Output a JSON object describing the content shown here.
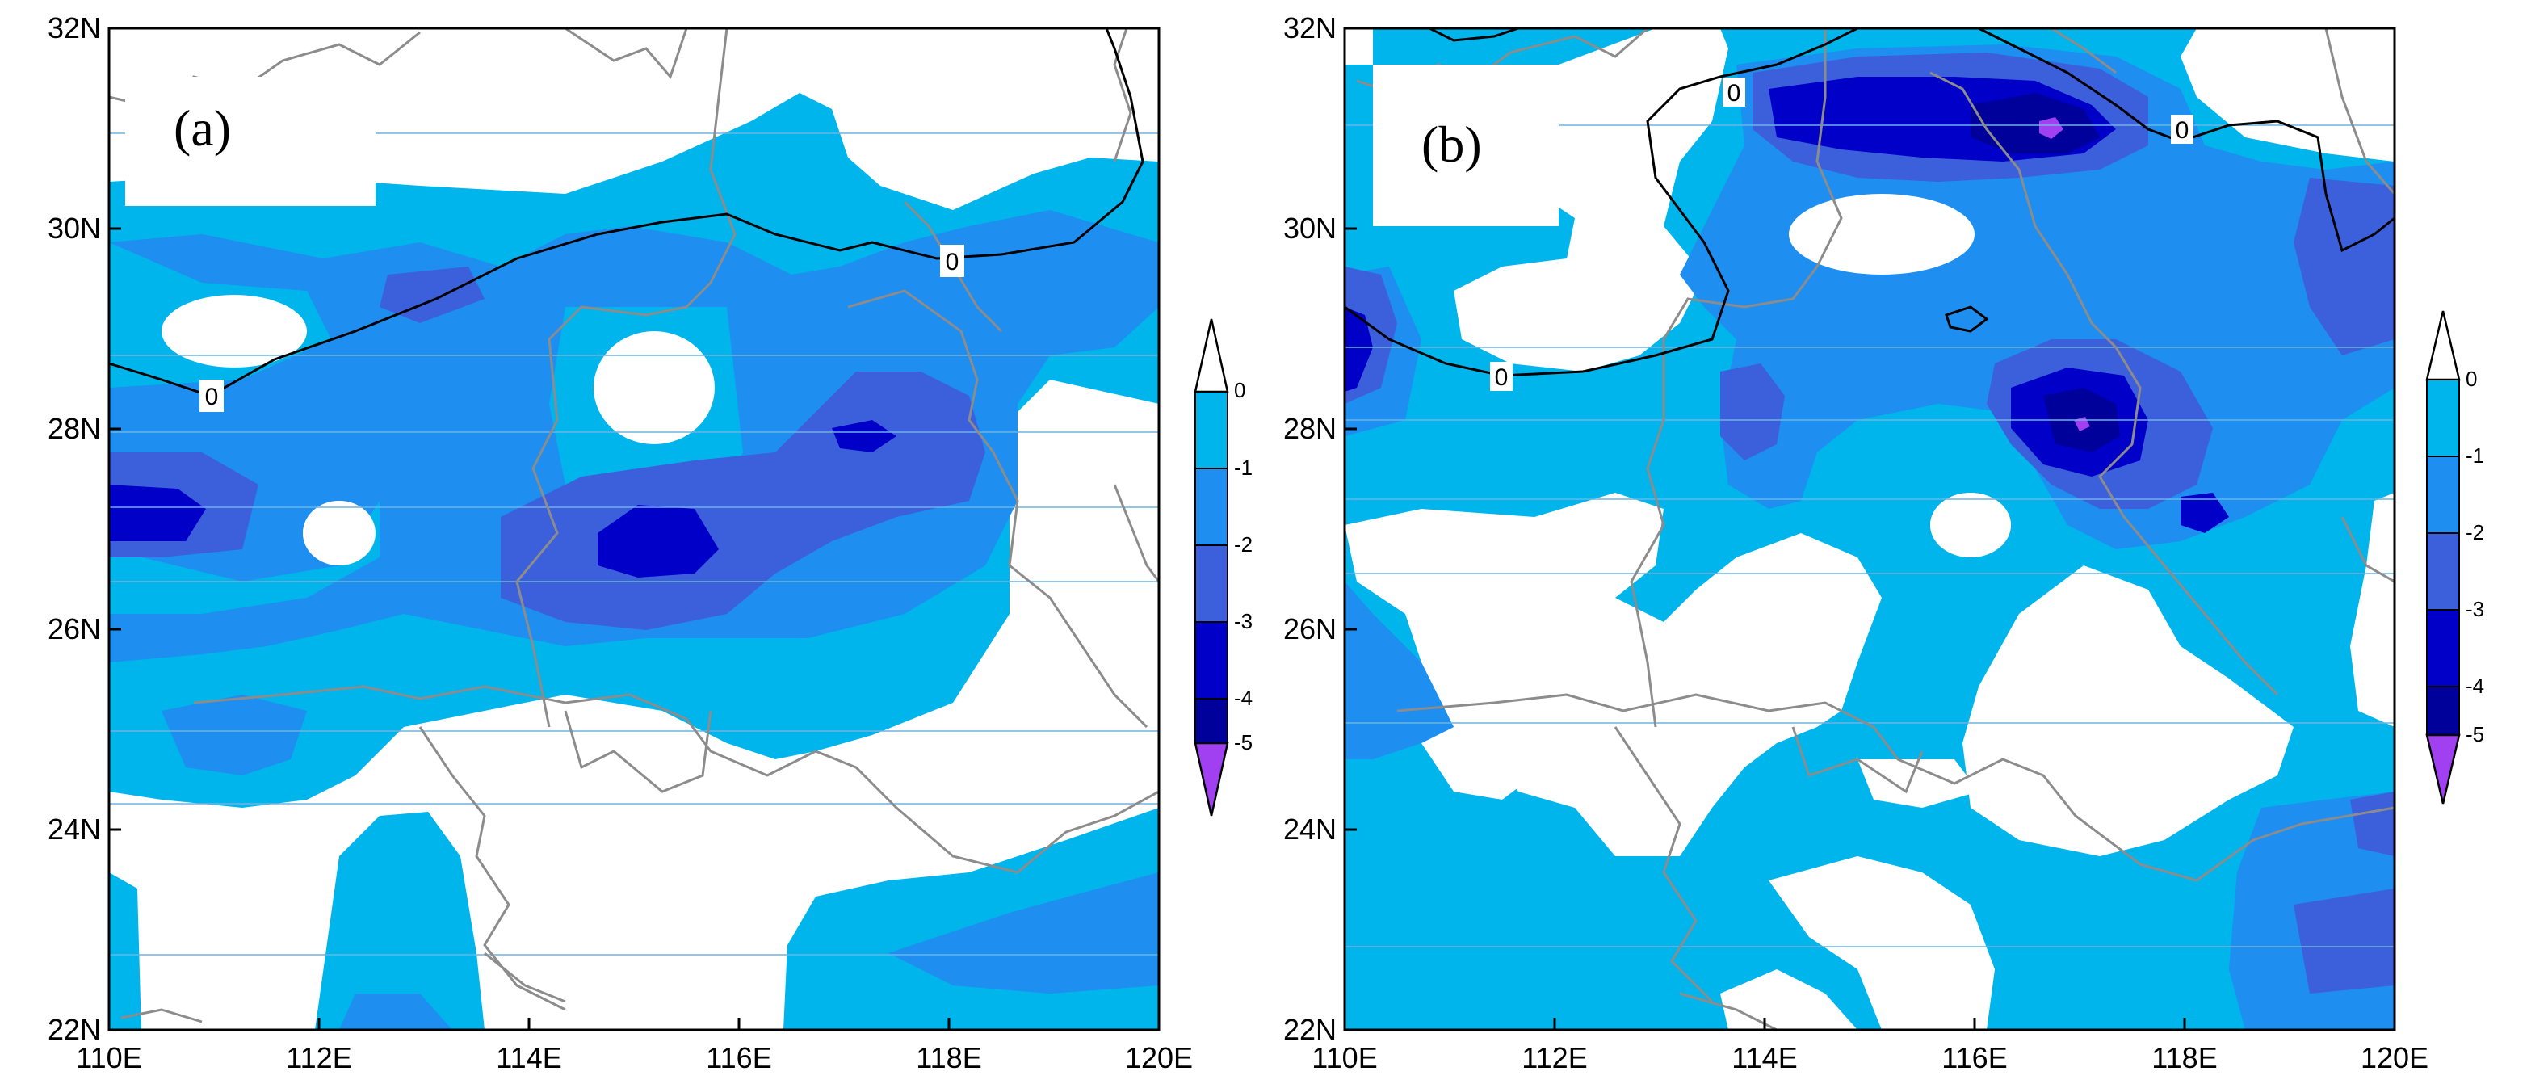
{
  "panels": [
    {
      "label": "(a)",
      "x_ticks": [
        "110E",
        "112E",
        "114E",
        "116E",
        "118E",
        "120E"
      ],
      "y_ticks": [
        "22N",
        "24N",
        "26N",
        "28N",
        "30N",
        "32N"
      ],
      "contour_labels": [
        "0",
        "0"
      ]
    },
    {
      "label": "(b)",
      "x_ticks": [
        "110E",
        "112E",
        "114E",
        "116E",
        "118E",
        "120E"
      ],
      "y_ticks": [
        "22N",
        "24N",
        "26N",
        "28N",
        "30N",
        "32N"
      ],
      "contour_labels": [
        "0",
        "0",
        "0"
      ]
    }
  ],
  "colorbar": {
    "labels": [
      "0",
      "-1",
      "-2",
      "-3",
      "-4",
      "-5"
    ],
    "colors": [
      "#00b4ec",
      "#1e8ef0",
      "#3c5fdc",
      "#0000c8",
      "#00009a",
      "#a040f0"
    ]
  },
  "colors": {
    "level_0": "#00b4ec",
    "level_1": "#1e8ef0",
    "level_2": "#3c5fdc",
    "level_3": "#0000c8",
    "level_4": "#00009a",
    "level_5": "#a040f0",
    "border": "#8c8c8c",
    "gridline": "#6fb3e0"
  }
}
